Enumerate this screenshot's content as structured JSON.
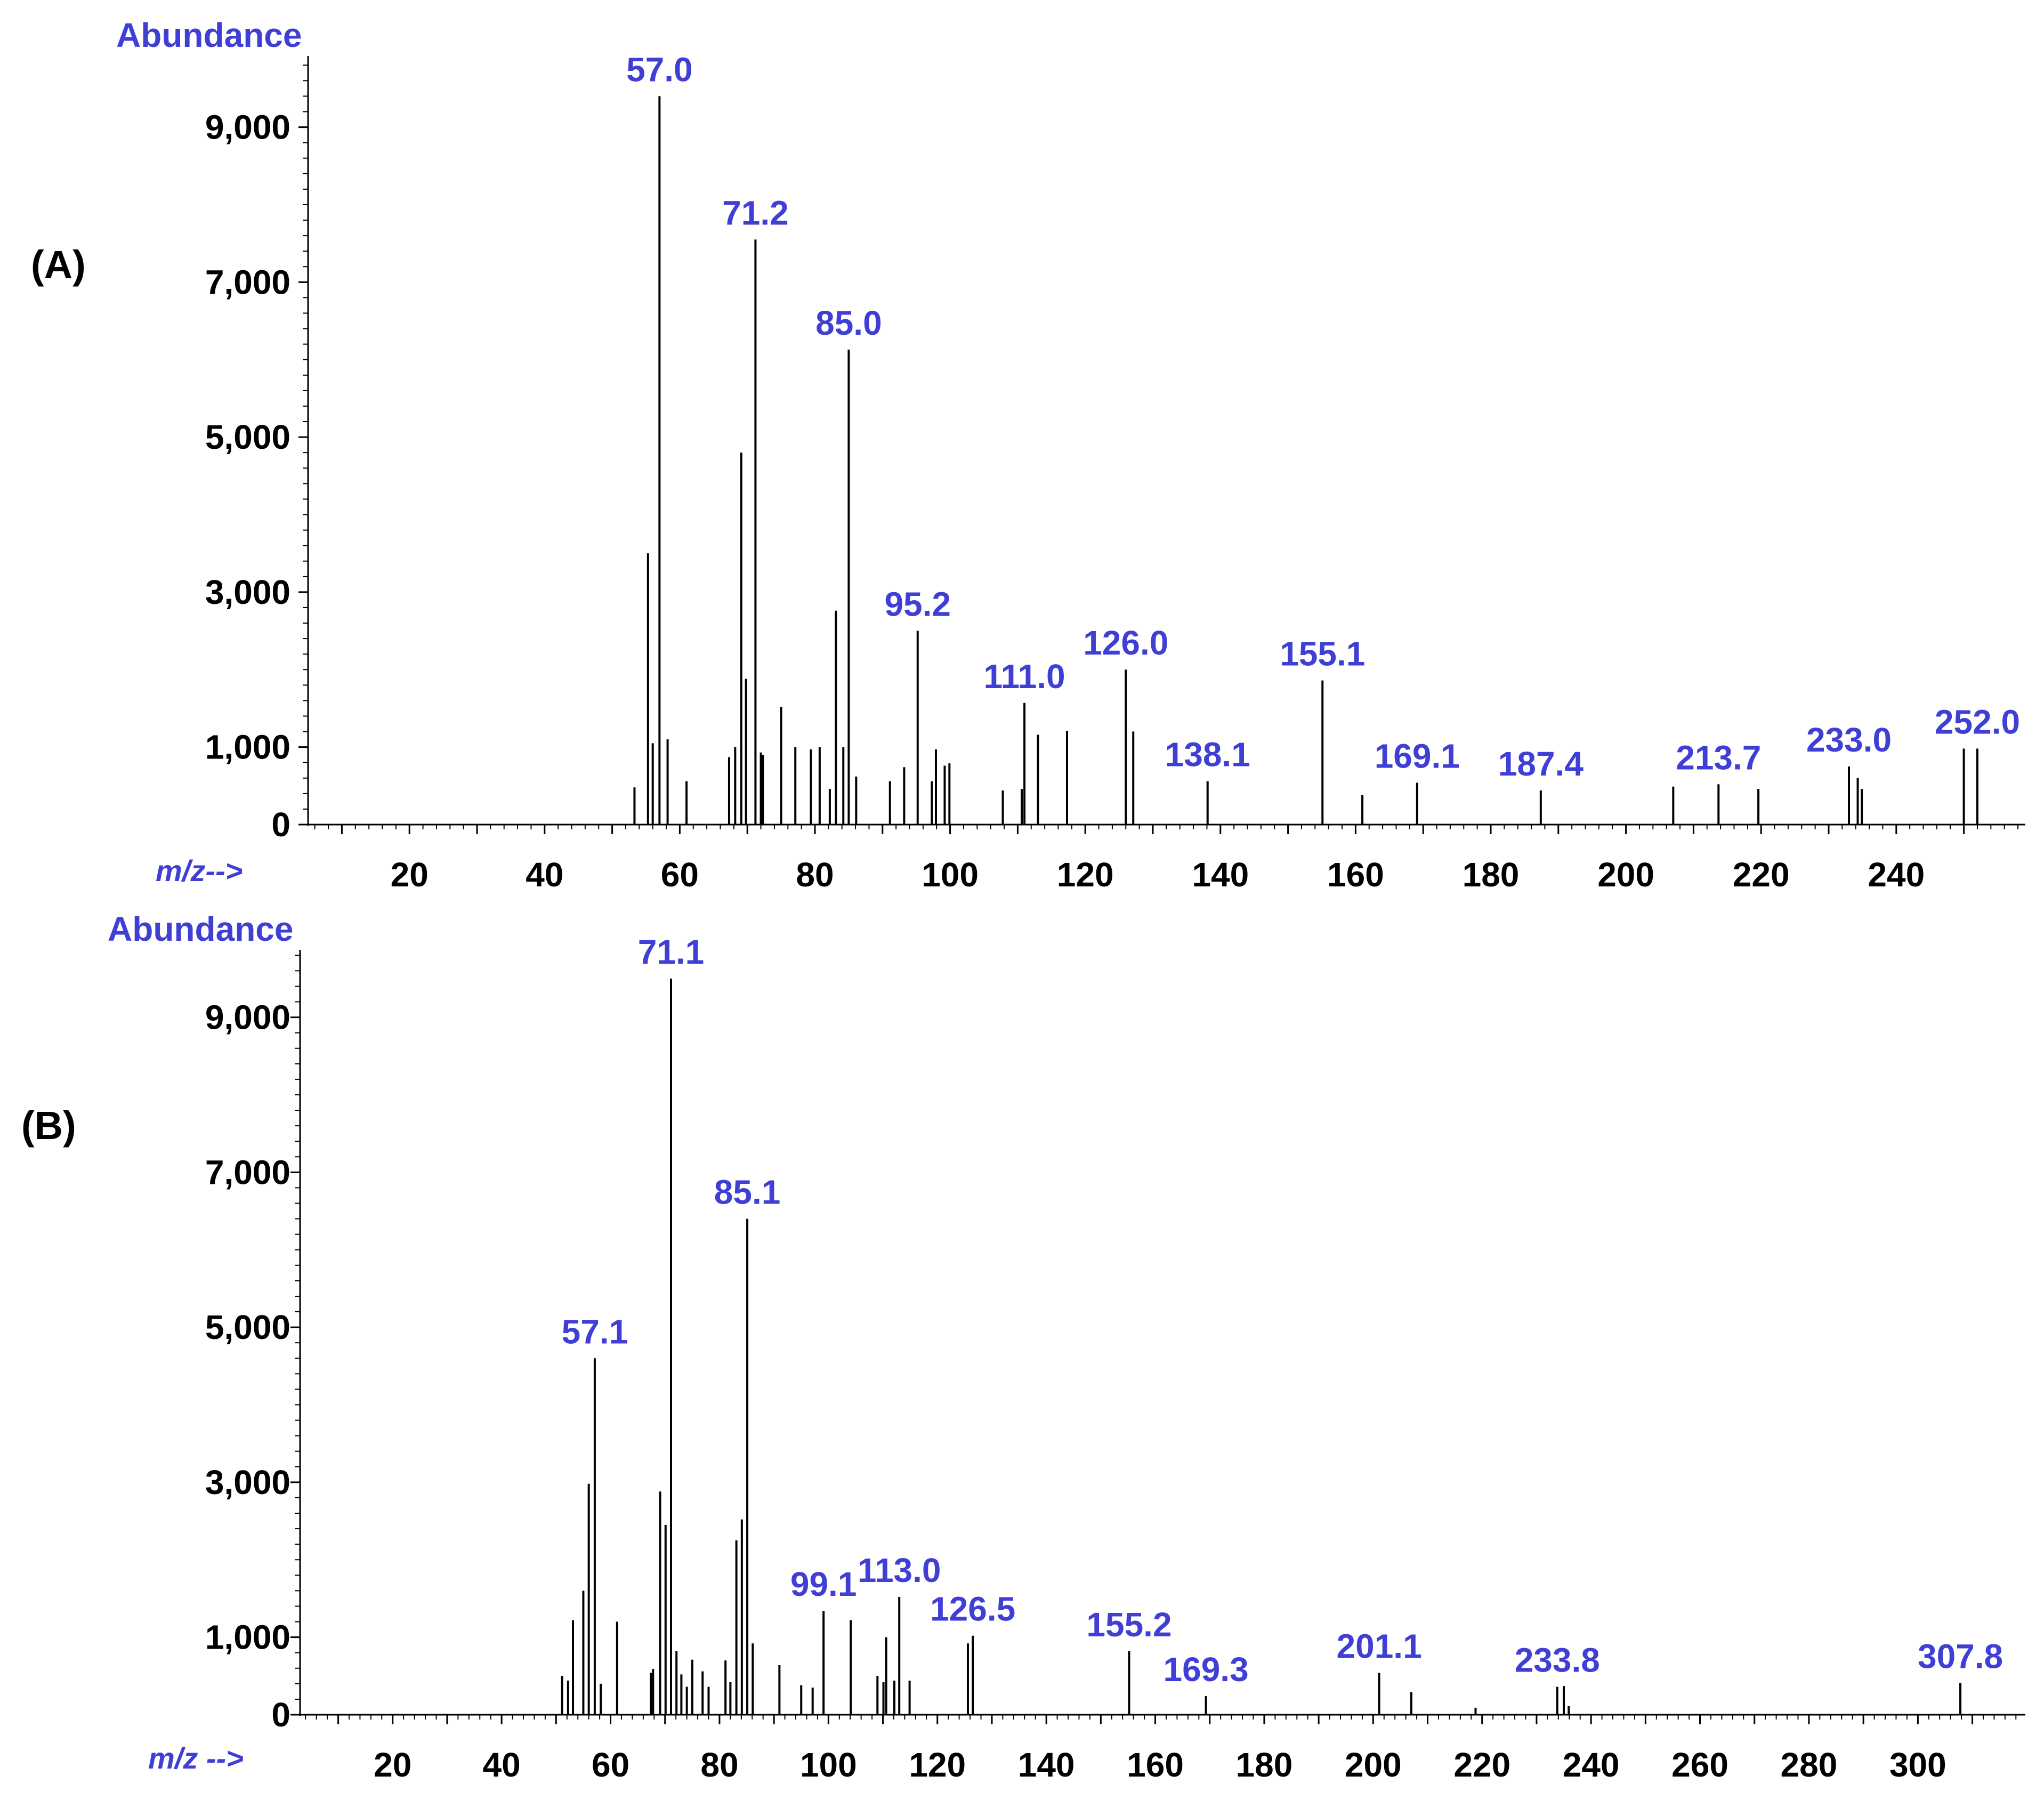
{
  "colors": {
    "axis": "#000000",
    "bars": "#000000",
    "accent_label": "#3f3fd6"
  },
  "chart_data": [
    {
      "type": "bar",
      "panel": "(A)",
      "ylabel": "Abundance",
      "xlabel": "m/z-->",
      "xlim": [
        5,
        259
      ],
      "ylim": [
        0,
        10000
      ],
      "x_ticks": [
        20,
        40,
        60,
        80,
        100,
        120,
        140,
        160,
        180,
        200,
        220,
        240
      ],
      "y_ticks": [
        0,
        1000,
        3000,
        5000,
        7000,
        9000
      ],
      "y_tick_labels": [
        "0",
        "1,000",
        "3,000",
        "5,000",
        "7,000",
        "9,000"
      ],
      "peaks": [
        {
          "mz": 53.3,
          "abundance": 480
        },
        {
          "mz": 55.3,
          "abundance": 3500
        },
        {
          "mz": 56.0,
          "abundance": 1050
        },
        {
          "mz": 57.0,
          "abundance": 9400,
          "label": "57.0"
        },
        {
          "mz": 58.2,
          "abundance": 1100
        },
        {
          "mz": 61.0,
          "abundance": 560
        },
        {
          "mz": 67.3,
          "abundance": 870
        },
        {
          "mz": 68.2,
          "abundance": 1000
        },
        {
          "mz": 69.1,
          "abundance": 4800
        },
        {
          "mz": 69.8,
          "abundance": 1880
        },
        {
          "mz": 71.2,
          "abundance": 7550,
          "label": "71.2"
        },
        {
          "mz": 72.0,
          "abundance": 930
        },
        {
          "mz": 72.3,
          "abundance": 900
        },
        {
          "mz": 75.0,
          "abundance": 1520
        },
        {
          "mz": 77.1,
          "abundance": 1000
        },
        {
          "mz": 79.4,
          "abundance": 970
        },
        {
          "mz": 80.7,
          "abundance": 1000
        },
        {
          "mz": 82.2,
          "abundance": 460
        },
        {
          "mz": 83.1,
          "abundance": 2760
        },
        {
          "mz": 84.2,
          "abundance": 1000
        },
        {
          "mz": 85.0,
          "abundance": 6130,
          "label": "85.0"
        },
        {
          "mz": 86.1,
          "abundance": 620
        },
        {
          "mz": 91.1,
          "abundance": 560
        },
        {
          "mz": 93.2,
          "abundance": 740
        },
        {
          "mz": 95.2,
          "abundance": 2500,
          "label": "95.2"
        },
        {
          "mz": 97.3,
          "abundance": 560
        },
        {
          "mz": 97.9,
          "abundance": 970
        },
        {
          "mz": 99.2,
          "abundance": 760
        },
        {
          "mz": 99.9,
          "abundance": 790
        },
        {
          "mz": 107.8,
          "abundance": 440
        },
        {
          "mz": 110.6,
          "abundance": 460
        },
        {
          "mz": 111.0,
          "abundance": 1570,
          "label": "111.0"
        },
        {
          "mz": 113.0,
          "abundance": 1160
        },
        {
          "mz": 117.3,
          "abundance": 1210
        },
        {
          "mz": 126.0,
          "abundance": 2000,
          "label": "126.0"
        },
        {
          "mz": 127.1,
          "abundance": 1200
        },
        {
          "mz": 138.1,
          "abundance": 560,
          "label": "138.1"
        },
        {
          "mz": 155.1,
          "abundance": 1860,
          "label": "155.1"
        },
        {
          "mz": 161.0,
          "abundance": 380
        },
        {
          "mz": 169.1,
          "abundance": 540,
          "label": "169.1"
        },
        {
          "mz": 187.4,
          "abundance": 440,
          "label": "187.4"
        },
        {
          "mz": 207.0,
          "abundance": 490
        },
        {
          "mz": 213.7,
          "abundance": 520,
          "label": "213.7"
        },
        {
          "mz": 219.6,
          "abundance": 460
        },
        {
          "mz": 233.0,
          "abundance": 750,
          "label": "233.0"
        },
        {
          "mz": 234.3,
          "abundance": 600
        },
        {
          "mz": 234.9,
          "abundance": 460
        },
        {
          "mz": 250.0,
          "abundance": 980
        },
        {
          "mz": 252.0,
          "abundance": 980,
          "label": "252.0"
        }
      ]
    },
    {
      "type": "bar",
      "panel": "(B)",
      "ylabel": "Abundance",
      "xlabel": "m/z -->",
      "xlim": [
        3,
        320
      ],
      "ylim": [
        0,
        10000
      ],
      "x_ticks": [
        20,
        40,
        60,
        80,
        100,
        120,
        140,
        160,
        180,
        200,
        220,
        240,
        260,
        280,
        300
      ],
      "y_ticks": [
        0,
        1000,
        3000,
        5000,
        7000,
        9000
      ],
      "y_tick_labels": [
        "0",
        "1,000",
        "3,000",
        "5,000",
        "7,000",
        "9,000"
      ],
      "peaks": [
        {
          "mz": 51.1,
          "abundance": 500
        },
        {
          "mz": 52.2,
          "abundance": 440
        },
        {
          "mz": 53.1,
          "abundance": 1220
        },
        {
          "mz": 55.0,
          "abundance": 1600
        },
        {
          "mz": 56.0,
          "abundance": 2980
        },
        {
          "mz": 57.1,
          "abundance": 4600,
          "label": "57.1"
        },
        {
          "mz": 58.2,
          "abundance": 400
        },
        {
          "mz": 61.2,
          "abundance": 1200
        },
        {
          "mz": 67.4,
          "abundance": 540
        },
        {
          "mz": 67.8,
          "abundance": 590
        },
        {
          "mz": 69.1,
          "abundance": 2880
        },
        {
          "mz": 70.1,
          "abundance": 2450
        },
        {
          "mz": 71.1,
          "abundance": 9500,
          "label": "71.1"
        },
        {
          "mz": 72.1,
          "abundance": 820
        },
        {
          "mz": 73.0,
          "abundance": 520
        },
        {
          "mz": 74.0,
          "abundance": 360
        },
        {
          "mz": 75.0,
          "abundance": 710
        },
        {
          "mz": 76.9,
          "abundance": 560
        },
        {
          "mz": 78.0,
          "abundance": 360
        },
        {
          "mz": 81.1,
          "abundance": 700
        },
        {
          "mz": 82.0,
          "abundance": 420
        },
        {
          "mz": 83.1,
          "abundance": 2250
        },
        {
          "mz": 84.1,
          "abundance": 2520
        },
        {
          "mz": 85.1,
          "abundance": 6400,
          "label": "85.1"
        },
        {
          "mz": 86.1,
          "abundance": 920
        },
        {
          "mz": 91.0,
          "abundance": 640
        },
        {
          "mz": 95.0,
          "abundance": 380
        },
        {
          "mz": 97.1,
          "abundance": 350
        },
        {
          "mz": 99.1,
          "abundance": 1340,
          "label": "99.1"
        },
        {
          "mz": 104.1,
          "abundance": 1220
        },
        {
          "mz": 109.0,
          "abundance": 500
        },
        {
          "mz": 110.1,
          "abundance": 420
        },
        {
          "mz": 110.6,
          "abundance": 1000
        },
        {
          "mz": 112.1,
          "abundance": 440
        },
        {
          "mz": 113.0,
          "abundance": 1520,
          "label": "113.0"
        },
        {
          "mz": 114.9,
          "abundance": 440
        },
        {
          "mz": 125.6,
          "abundance": 920
        },
        {
          "mz": 126.5,
          "abundance": 1020,
          "label": "126.5"
        },
        {
          "mz": 155.2,
          "abundance": 820,
          "label": "155.2"
        },
        {
          "mz": 169.3,
          "abundance": 240,
          "label": "169.3"
        },
        {
          "mz": 201.1,
          "abundance": 540,
          "label": "201.1"
        },
        {
          "mz": 207.0,
          "abundance": 290
        },
        {
          "mz": 218.8,
          "abundance": 90
        },
        {
          "mz": 233.8,
          "abundance": 360,
          "label": "233.8"
        },
        {
          "mz": 235.0,
          "abundance": 370
        },
        {
          "mz": 235.9,
          "abundance": 110
        },
        {
          "mz": 307.8,
          "abundance": 410,
          "label": "307.8"
        }
      ]
    }
  ]
}
